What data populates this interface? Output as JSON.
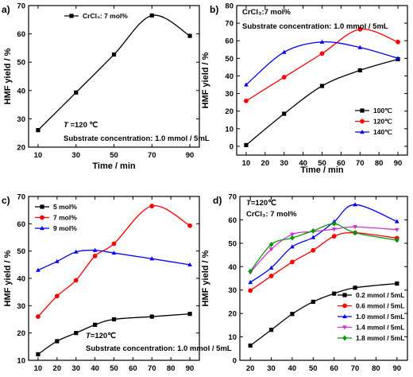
{
  "chart_data": [
    {
      "id": "a",
      "type": "line",
      "panel_label": "a)",
      "xlabel": "Time / min",
      "ylabel": "HMF yield / %",
      "xlim": [
        5,
        95
      ],
      "ylim": [
        20,
        70
      ],
      "xticks": [
        10,
        30,
        50,
        70,
        90
      ],
      "yticks": [
        20,
        30,
        40,
        50,
        60,
        70
      ],
      "annotations": [
        {
          "text": "T =120 ℃",
          "x": 30,
          "y": 29.2
        },
        {
          "text": "Substrate concentration: 1.0 mmol / 5mL",
          "x": 30,
          "y": 25.2
        }
      ],
      "legend": {
        "placement": "top-left"
      },
      "series": [
        {
          "name": "CrCl₃: 7 mol%",
          "color": "#000000",
          "marker": "square",
          "x": [
            10,
            30,
            50,
            70,
            90
          ],
          "y": [
            26,
            39.3,
            52.7,
            66.5,
            59.3
          ]
        }
      ]
    },
    {
      "id": "b",
      "type": "line",
      "panel_label": "b)",
      "xlabel": "Time / min",
      "ylabel": "HMF yield / %",
      "xlim": [
        5,
        95
      ],
      "ylim": [
        -5,
        80
      ],
      "xticks": [
        10,
        20,
        30,
        40,
        50,
        60,
        70,
        80,
        90
      ],
      "yticks": [
        0,
        10,
        20,
        30,
        40,
        50,
        60,
        70,
        80
      ],
      "annotations": [
        {
          "text": "CrCl₃:7 mol%",
          "x": 10,
          "y": 74.5
        },
        {
          "text": "Substrate concentration: 1.0 mmol / 5mL",
          "x": 10,
          "y": 68.5
        }
      ],
      "legend": {
        "placement": "bottom-right"
      },
      "series": [
        {
          "name": "100℃",
          "color": "#000000",
          "marker": "square",
          "x": [
            10,
            30,
            50,
            70,
            90
          ],
          "y": [
            0.7,
            18.5,
            34.3,
            43.2,
            49.5
          ]
        },
        {
          "name": "120℃",
          "color": "#ff0000",
          "marker": "circle",
          "x": [
            10,
            30,
            50,
            70,
            90
          ],
          "y": [
            25.8,
            39.3,
            52.7,
            66.5,
            59.3
          ]
        },
        {
          "name": "140℃",
          "color": "#0000ff",
          "marker": "triangle",
          "x": [
            10,
            30,
            50,
            70,
            90
          ],
          "y": [
            35,
            53.5,
            59.3,
            56.2,
            50
          ]
        }
      ]
    },
    {
      "id": "c",
      "type": "line",
      "panel_label": "c)",
      "xlabel": "",
      "ylabel": "HMF yield / %",
      "xlim": [
        5,
        95
      ],
      "ylim": [
        10,
        70
      ],
      "xticks": [
        10,
        20,
        30,
        40,
        50,
        60,
        70,
        80,
        90
      ],
      "yticks": [
        10,
        20,
        30,
        40,
        50,
        60,
        70
      ],
      "annotations": [
        {
          "text": "T=120℃",
          "x": 30,
          "y": 15
        },
        {
          "text": "Substrate concentration: 1.0 mmol / 5mL",
          "x": 30,
          "y": 11.2
        }
      ],
      "legend": {
        "placement": "top-left"
      },
      "series": [
        {
          "name": "5 mol%",
          "color": "#000000",
          "marker": "square",
          "x": [
            10,
            20,
            30,
            40,
            50,
            70,
            90
          ],
          "y": [
            12.2,
            17,
            20,
            23,
            25,
            26,
            27
          ]
        },
        {
          "name": "7 mol%",
          "color": "#ff0000",
          "marker": "circle",
          "x": [
            10,
            20,
            30,
            40,
            50,
            70,
            90
          ],
          "y": [
            26,
            33.5,
            39.3,
            48.2,
            52.7,
            66.5,
            59.3
          ]
        },
        {
          "name": "9 mol%",
          "color": "#0000ff",
          "marker": "triangle",
          "x": [
            10,
            20,
            30,
            40,
            50,
            70,
            90
          ],
          "y": [
            43,
            46.2,
            49.7,
            50.3,
            49.3,
            47.2,
            45
          ]
        }
      ]
    },
    {
      "id": "d",
      "type": "line",
      "panel_label": "d)",
      "xlabel": "",
      "ylabel": "HMF yield / %",
      "xlim": [
        15,
        95
      ],
      "ylim": [
        0,
        70
      ],
      "xticks": [
        20,
        30,
        40,
        50,
        60,
        70,
        80,
        90
      ],
      "yticks": [
        0,
        10,
        20,
        30,
        40,
        50,
        60,
        70
      ],
      "annotations": [
        {
          "text": "T=120℃",
          "x": 20,
          "y": 66.5
        },
        {
          "text": "CrCl₃:  7 mol%",
          "x": 20,
          "y": 62
        }
      ],
      "legend": {
        "placement": "bottom-right"
      },
      "series": [
        {
          "name": "0.2 mmol / 5mL",
          "color": "#000000",
          "marker": "square",
          "x": [
            20,
            30,
            40,
            50,
            60,
            70,
            90
          ],
          "y": [
            6.3,
            13,
            19.8,
            25,
            28.5,
            31,
            32.8
          ]
        },
        {
          "name": "0.6 mmol / 5mL",
          "color": "#ff0000",
          "marker": "circle",
          "x": [
            20,
            30,
            40,
            50,
            60,
            70,
            90
          ],
          "y": [
            29.8,
            36,
            42,
            47,
            53,
            54.5,
            52.2
          ]
        },
        {
          "name": "1.0 mmol / 5mL",
          "color": "#0000ff",
          "marker": "triangle",
          "x": [
            20,
            30,
            40,
            50,
            60,
            70,
            90
          ],
          "y": [
            33.3,
            39.5,
            48.5,
            52.5,
            59.2,
            66.5,
            59.3
          ]
        },
        {
          "name": "1.4 mmol / 5mL",
          "color": "#cc33cc",
          "marker": "triangle-down",
          "x": [
            20,
            30,
            40,
            50,
            60,
            70,
            90
          ],
          "y": [
            37.5,
            47.5,
            53.8,
            55,
            56,
            57,
            55.8
          ]
        },
        {
          "name": "1.8 mmol / 5mL",
          "color": "#009900",
          "marker": "diamond",
          "x": [
            20,
            30,
            40,
            50,
            60,
            70,
            90
          ],
          "y": [
            38,
            49.5,
            52.3,
            55.3,
            58.3,
            54.5,
            51.3
          ]
        }
      ]
    }
  ]
}
